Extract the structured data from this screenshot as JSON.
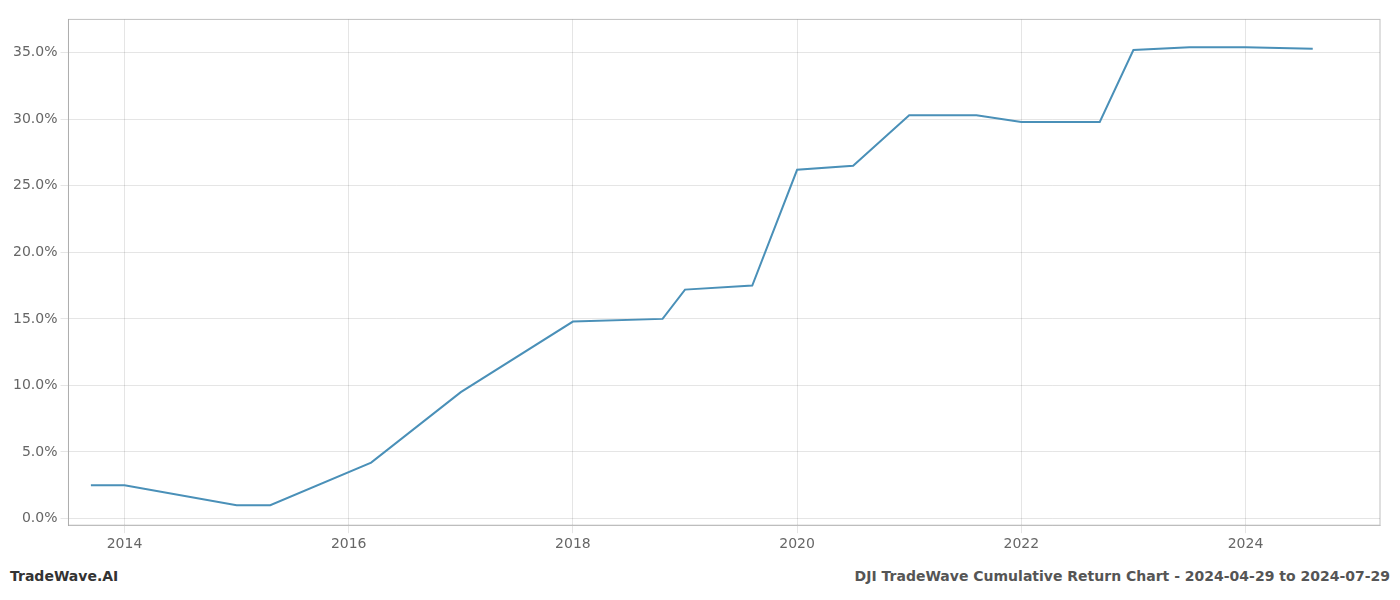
{
  "chart_data": {
    "type": "line",
    "title": "DJI TradeWave Cumulative Return Chart - 2024-04-29 to 2024-07-29",
    "annotations": [
      "TradeWave.AI"
    ],
    "x": [
      2013.7,
      2014.0,
      2015.0,
      2015.3,
      2016.2,
      2017.0,
      2018.0,
      2018.8,
      2019.0,
      2019.6,
      2020.0,
      2020.5,
      2021.0,
      2021.2,
      2021.6,
      2022.0,
      2022.3,
      2022.7,
      2023.0,
      2023.5,
      2024.0,
      2024.6
    ],
    "values": [
      0.025,
      0.025,
      0.01,
      0.01,
      0.042,
      0.095,
      0.148,
      0.15,
      0.172,
      0.175,
      0.262,
      0.265,
      0.303,
      0.303,
      0.303,
      0.298,
      0.298,
      0.298,
      0.352,
      0.354,
      0.354,
      0.353
    ],
    "color": "#4a90b8",
    "xlim": [
      2013.5,
      2025.2
    ],
    "ylim": [
      -0.005,
      0.375
    ],
    "xticks": [
      2014,
      2016,
      2018,
      2020,
      2022,
      2024
    ],
    "yticks": [
      {
        "value": 0.0,
        "label": "0.0%"
      },
      {
        "value": 0.05,
        "label": "5.0%"
      },
      {
        "value": 0.1,
        "label": "10.0%"
      },
      {
        "value": 0.15,
        "label": "15.0%"
      },
      {
        "value": 0.2,
        "label": "20.0%"
      },
      {
        "value": 0.25,
        "label": "25.0%"
      },
      {
        "value": 0.3,
        "label": "30.0%"
      },
      {
        "value": 0.35,
        "label": "35.0%"
      }
    ],
    "grid": true
  }
}
